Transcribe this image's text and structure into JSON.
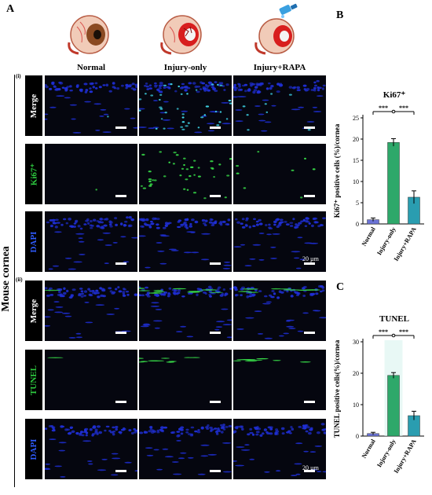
{
  "panels": {
    "a": "A",
    "b": "B",
    "c": "C"
  },
  "columns": [
    "Normal",
    "Injury-only",
    "Injury+RAPA"
  ],
  "side_label": "Mouse cornea",
  "sections": [
    {
      "label": "(i)",
      "rows": [
        "Merge",
        "Ki67⁺",
        "DAPI"
      ]
    },
    {
      "label": "(ii)",
      "rows": [
        "Merge",
        "TUNEL",
        "DAPI"
      ]
    }
  ],
  "scale_text": "20 µm",
  "icons": [
    "eye-normal-icon",
    "eye-injury-icon",
    "eye-injury-rapa-icon",
    "eyedrop-bottle-icon"
  ],
  "colors": {
    "nuclei": "#1f2fd6",
    "signal": "#39e24a",
    "cyan": "#3fd6e8",
    "normal_bar": "#6b73d6",
    "injury_bar": "#2ea86a",
    "rapa_bar": "#2a9db0"
  },
  "chart_data": [
    {
      "type": "bar",
      "title": "Ki67⁺",
      "ylabel": "Ki67⁺ positive cells (%)/cornea",
      "categories": [
        "Normal",
        "Injury-only",
        "Injury+RAPA"
      ],
      "values": [
        1.0,
        19.2,
        6.3
      ],
      "errors": [
        0.4,
        0.9,
        1.5
      ],
      "ylim": [
        0,
        25
      ],
      "yticks": [
        "0",
        "5",
        "10",
        "15",
        "20",
        "25"
      ],
      "significance": [
        "***",
        "***"
      ]
    },
    {
      "type": "bar",
      "title": "TUNEL",
      "ylabel": "TUNEL positive cells(%)/cornea",
      "categories": [
        "Normal",
        "Injury-only",
        "Injury+RAPA"
      ],
      "values": [
        0.8,
        19.3,
        6.5
      ],
      "errors": [
        0.4,
        0.9,
        1.4
      ],
      "ylim": [
        0,
        30
      ],
      "yticks": [
        "0",
        "10",
        "20",
        "30"
      ],
      "significance": [
        "***",
        "***"
      ]
    }
  ]
}
